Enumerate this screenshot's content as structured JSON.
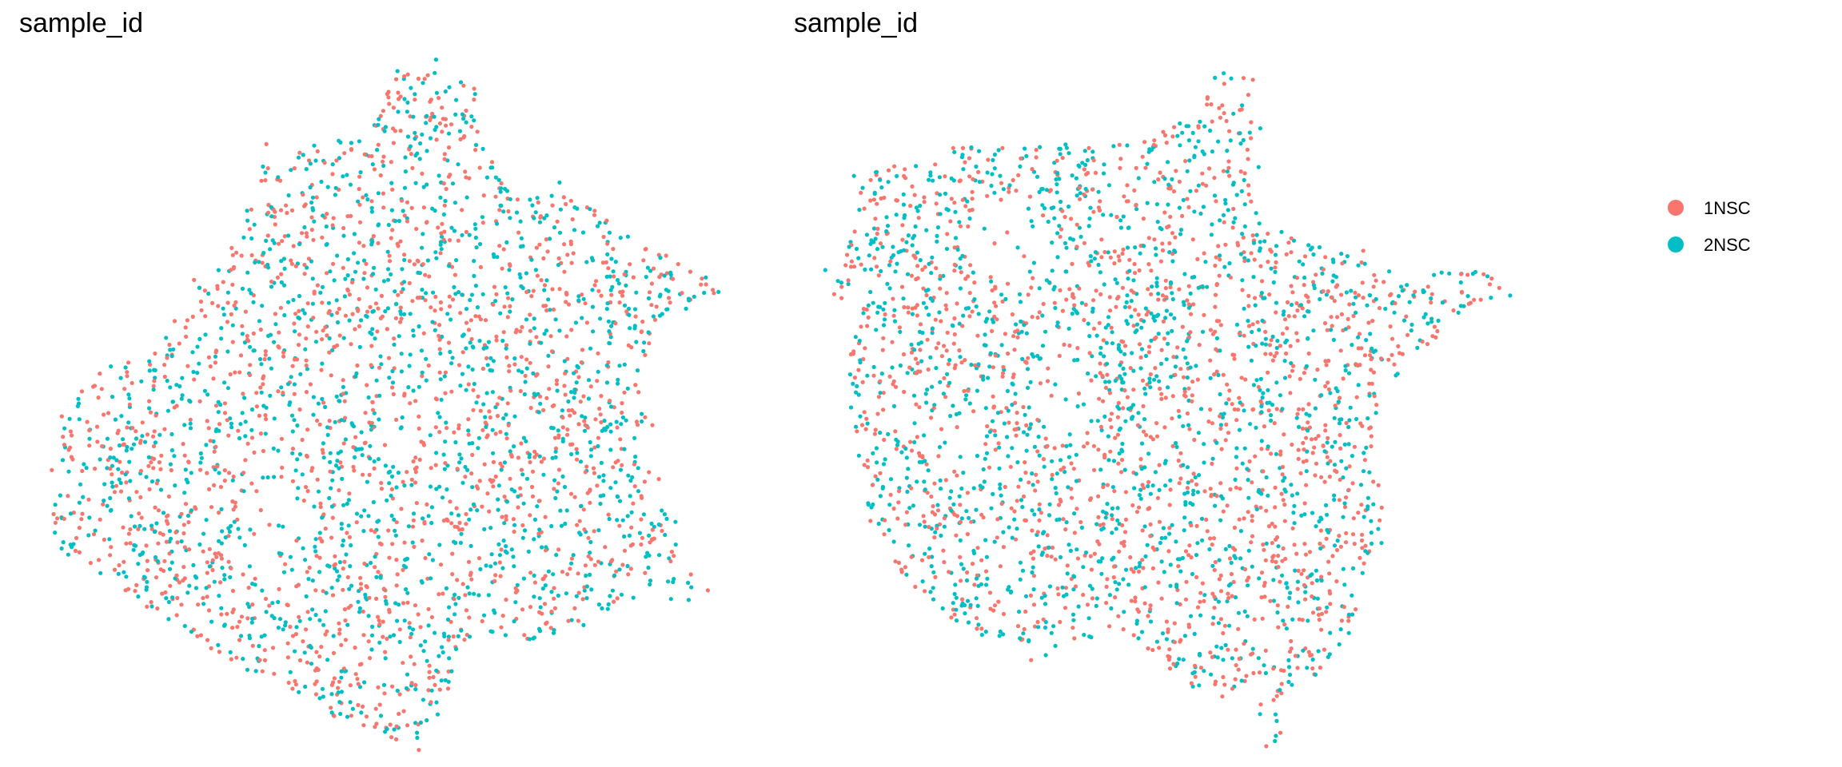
{
  "chart_data": [
    {
      "type": "scatter",
      "title": "sample_id",
      "xlabel": "",
      "ylabel": "",
      "grid": false,
      "axes_visible": false,
      "point_count_per_series_approx": 1400,
      "series": [
        {
          "name": "1NSC",
          "color": "#F8766D"
        },
        {
          "name": "2NSC",
          "color": "#00BFC4"
        }
      ],
      "point_data_note_excluded": true
    },
    {
      "type": "scatter",
      "title": "sample_id",
      "xlabel": "",
      "ylabel": "",
      "grid": false,
      "axes_visible": false,
      "point_count_per_series_approx": 1400,
      "series": [
        {
          "name": "1NSC",
          "color": "#F8766D"
        },
        {
          "name": "2NSC",
          "color": "#00BFC4"
        }
      ]
    }
  ],
  "legend": {
    "placement": "right",
    "items": [
      {
        "label": "1NSC",
        "color": "#F8766D"
      },
      {
        "label": "2NSC",
        "color": "#00BFC4"
      }
    ]
  }
}
